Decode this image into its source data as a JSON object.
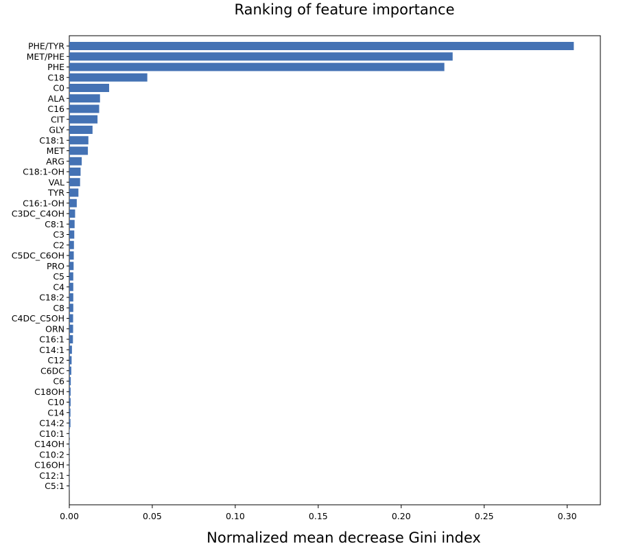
{
  "chart_data": {
    "type": "bar",
    "orientation": "horizontal",
    "title": "Ranking of feature importance",
    "xlabel": "Normalized mean decrease Gini index",
    "ylabel": "",
    "xlim": [
      0,
      0.32
    ],
    "xticks": [
      0.0,
      0.05,
      0.1,
      0.15,
      0.2,
      0.25,
      0.3
    ],
    "xtick_labels": [
      "0.00",
      "0.05",
      "0.10",
      "0.15",
      "0.20",
      "0.25",
      "0.30"
    ],
    "grid": false,
    "bar_color": "#4472b4",
    "categories": [
      "PHE/TYR",
      "MET/PHE",
      "PHE",
      "C18",
      "C0",
      "ALA",
      "C16",
      "CIT",
      "GLY",
      "C18:1",
      "MET",
      "ARG",
      "C18:1-OH",
      "VAL",
      "TYR",
      "C16:1-OH",
      "C3DC_C4OH",
      "C8:1",
      "C3",
      "C2",
      "C5DC_C6OH",
      "PRO",
      "C5",
      "C4",
      "C18:2",
      "C8",
      "C4DC_C5OH",
      "ORN",
      "C16:1",
      "C14:1",
      "C12",
      "C6DC",
      "C6",
      "C18OH",
      "C10",
      "C14",
      "C14:2",
      "C10:1",
      "C14OH",
      "C10:2",
      "C16OH",
      "C12:1",
      "C5:1"
    ],
    "values": [
      0.304,
      0.231,
      0.226,
      0.047,
      0.024,
      0.0185,
      0.018,
      0.017,
      0.014,
      0.0115,
      0.0112,
      0.0075,
      0.0068,
      0.0065,
      0.0055,
      0.0045,
      0.0035,
      0.0032,
      0.003,
      0.0028,
      0.0027,
      0.0026,
      0.0024,
      0.0024,
      0.0024,
      0.0024,
      0.0023,
      0.0023,
      0.0022,
      0.0016,
      0.0014,
      0.0012,
      0.0009,
      0.0008,
      0.0008,
      0.0007,
      0.0007,
      0.0002,
      0.0002,
      0.0001,
      0.0001,
      0.0001,
      0.0001
    ]
  }
}
